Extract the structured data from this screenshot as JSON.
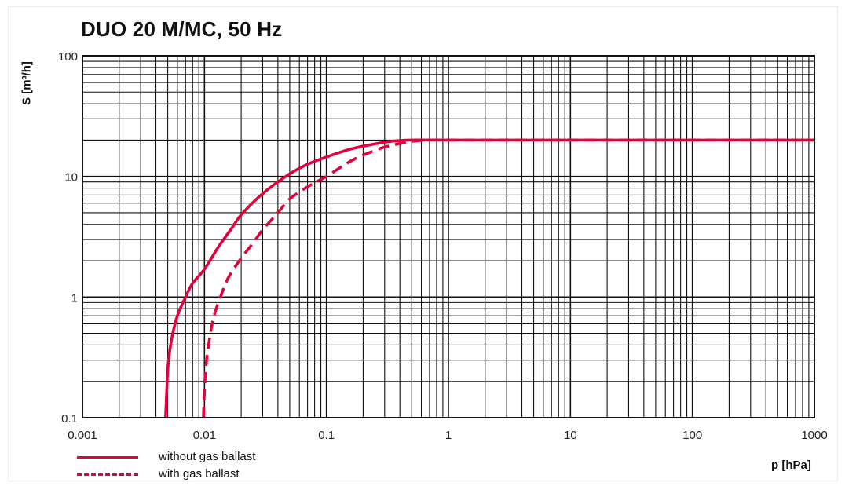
{
  "chart_data": {
    "type": "line",
    "title": "DUO 20 M/MC, 50 Hz",
    "xlabel": "p [hPa]",
    "ylabel": "S [m³/h]",
    "xscale": "log",
    "yscale": "log",
    "xlim": [
      0.001,
      1000
    ],
    "ylim": [
      0.1,
      100
    ],
    "x_ticks": [
      "0.001",
      "0.01",
      "0.1",
      "1",
      "10",
      "100",
      "1000"
    ],
    "y_ticks": [
      "0.1",
      "1",
      "10",
      "100"
    ],
    "grid": true,
    "legend_position": "bottom-left",
    "color": "#e4003a",
    "series": [
      {
        "name": "without gas ballast",
        "style": "solid",
        "x": [
          0.0048,
          0.0049,
          0.005,
          0.0052,
          0.0055,
          0.006,
          0.007,
          0.008,
          0.01,
          0.013,
          0.017,
          0.02,
          0.03,
          0.05,
          0.07,
          0.1,
          0.15,
          0.2,
          0.3,
          0.4,
          0.5,
          1,
          10,
          100,
          1000
        ],
        "y": [
          0.1,
          0.16,
          0.25,
          0.36,
          0.5,
          0.7,
          1.0,
          1.3,
          1.7,
          2.6,
          3.8,
          4.8,
          7.2,
          10.5,
          12.6,
          14.5,
          16.6,
          17.8,
          19.2,
          19.8,
          20,
          20,
          20,
          20,
          20
        ]
      },
      {
        "name": "with gas ballast",
        "style": "dashed",
        "x": [
          0.0098,
          0.0102,
          0.011,
          0.012,
          0.014,
          0.016,
          0.02,
          0.025,
          0.03,
          0.04,
          0.05,
          0.07,
          0.1,
          0.15,
          0.2,
          0.3,
          0.5,
          0.7,
          1,
          10,
          100,
          1000
        ],
        "y": [
          0.1,
          0.24,
          0.45,
          0.7,
          1.1,
          1.5,
          2.1,
          2.8,
          3.6,
          5.0,
          6.5,
          8.2,
          10.0,
          13.0,
          15.0,
          17.5,
          19.5,
          20,
          20,
          20,
          20,
          20
        ]
      }
    ]
  }
}
